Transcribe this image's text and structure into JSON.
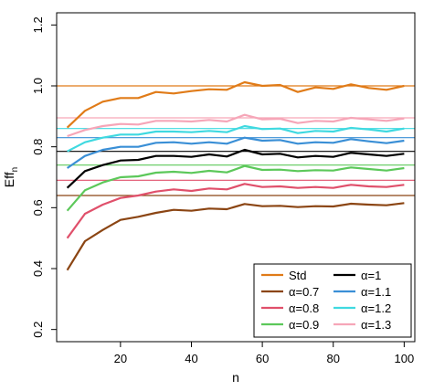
{
  "chart_data": {
    "type": "line",
    "xlabel": "n",
    "ylabel": "Eff",
    "ylabel_subscript": "n",
    "xlim": [
      2,
      103
    ],
    "ylim": [
      0.16,
      1.24
    ],
    "xticks": [
      20,
      40,
      60,
      80,
      100
    ],
    "yticks": [
      0.2,
      0.4,
      0.6,
      0.8,
      1.0,
      1.2
    ],
    "xtick_labels": [
      "20",
      "40",
      "60",
      "80",
      "100"
    ],
    "ytick_labels": [
      "0.2",
      "0.4",
      "0.6",
      "0.8",
      "1.0",
      "1.2"
    ],
    "grid": false,
    "legend_position": "bottom-right",
    "x": [
      5,
      10,
      15,
      20,
      25,
      30,
      35,
      40,
      45,
      50,
      55,
      60,
      65,
      70,
      75,
      80,
      85,
      90,
      95,
      100
    ],
    "series": [
      {
        "name": "Std",
        "color": "#e07b18",
        "reference": 1.0,
        "values": [
          0.863,
          0.918,
          0.948,
          0.96,
          0.96,
          0.98,
          0.975,
          0.983,
          0.989,
          0.987,
          1.012,
          1.0,
          1.003,
          0.98,
          0.995,
          0.99,
          1.005,
          0.993,
          0.987,
          1.0
        ]
      },
      {
        "name": "α=0.7",
        "color": "#8b4513",
        "reference": 0.64,
        "values": [
          0.395,
          0.49,
          0.527,
          0.56,
          0.57,
          0.583,
          0.593,
          0.59,
          0.597,
          0.595,
          0.612,
          0.605,
          0.606,
          0.602,
          0.605,
          0.604,
          0.613,
          0.61,
          0.608,
          0.615
        ]
      },
      {
        "name": "α=0.8",
        "color": "#e0506b",
        "reference": 0.69,
        "values": [
          0.5,
          0.58,
          0.61,
          0.632,
          0.64,
          0.653,
          0.66,
          0.655,
          0.663,
          0.66,
          0.678,
          0.668,
          0.67,
          0.665,
          0.668,
          0.665,
          0.675,
          0.67,
          0.668,
          0.675
        ]
      },
      {
        "name": "α=0.9",
        "color": "#5cc85a",
        "reference": 0.74,
        "values": [
          0.59,
          0.657,
          0.683,
          0.7,
          0.703,
          0.715,
          0.718,
          0.714,
          0.721,
          0.716,
          0.737,
          0.724,
          0.725,
          0.72,
          0.723,
          0.722,
          0.732,
          0.727,
          0.722,
          0.73
        ]
      },
      {
        "name": "α=1",
        "color": "#000000",
        "reference": 0.785,
        "values": [
          0.665,
          0.72,
          0.74,
          0.755,
          0.757,
          0.77,
          0.77,
          0.767,
          0.775,
          0.768,
          0.79,
          0.775,
          0.777,
          0.765,
          0.77,
          0.767,
          0.78,
          0.775,
          0.77,
          0.777
        ]
      },
      {
        "name": "α=1.1",
        "color": "#3a8fd6",
        "reference": 0.83,
        "values": [
          0.73,
          0.77,
          0.79,
          0.8,
          0.8,
          0.813,
          0.815,
          0.81,
          0.815,
          0.81,
          0.83,
          0.82,
          0.822,
          0.81,
          0.815,
          0.813,
          0.825,
          0.818,
          0.812,
          0.82
        ]
      },
      {
        "name": "α=1.2",
        "color": "#3fd9e0",
        "reference": 0.86,
        "values": [
          0.785,
          0.815,
          0.83,
          0.84,
          0.84,
          0.85,
          0.85,
          0.848,
          0.852,
          0.848,
          0.868,
          0.858,
          0.86,
          0.845,
          0.852,
          0.85,
          0.862,
          0.857,
          0.85,
          0.86
        ]
      },
      {
        "name": "α=1.3",
        "color": "#f6a6b8",
        "reference": 0.895,
        "values": [
          0.835,
          0.855,
          0.868,
          0.875,
          0.873,
          0.885,
          0.885,
          0.883,
          0.888,
          0.883,
          0.905,
          0.89,
          0.892,
          0.878,
          0.885,
          0.883,
          0.895,
          0.89,
          0.885,
          0.893
        ]
      }
    ]
  }
}
